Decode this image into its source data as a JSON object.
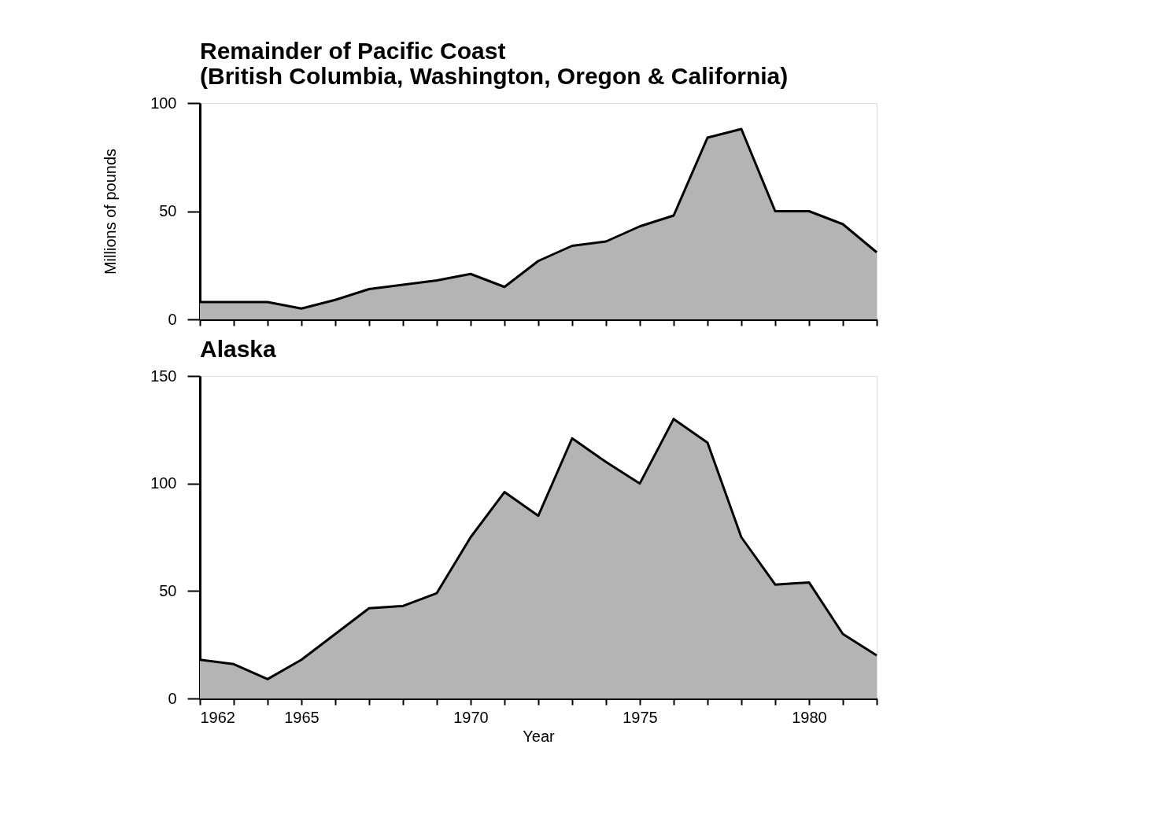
{
  "chart_data": [
    {
      "type": "area",
      "title": "Remainder of Pacific Coast\n(British Columbia, Washington, Oregon & California)",
      "ylabel": "Millions of pounds",
      "x": [
        1962,
        1963,
        1964,
        1965,
        1966,
        1967,
        1968,
        1969,
        1970,
        1971,
        1972,
        1973,
        1974,
        1975,
        1976,
        1977,
        1978,
        1979,
        1980,
        1981,
        1982
      ],
      "series": [
        {
          "color": "#b4b4b4",
          "values": [
            8,
            8,
            8,
            5,
            9,
            14,
            16,
            18,
            21,
            15,
            27,
            34,
            36,
            43,
            48,
            84,
            88,
            50,
            50,
            44,
            31
          ]
        }
      ],
      "xlim": [
        1962,
        1982
      ],
      "ylim": [
        0,
        100
      ],
      "yticks": [
        0,
        50,
        100
      ],
      "xticks": [
        1962,
        {
          "value": 1963,
          "label": null
        },
        {
          "value": 1964,
          "label": null
        },
        1965,
        {
          "value": 1966,
          "label": null
        },
        {
          "value": 1967,
          "label": null
        },
        {
          "value": 1968,
          "label": null
        },
        {
          "value": 1969,
          "label": null
        },
        1970,
        {
          "value": 1971,
          "label": null
        },
        {
          "value": 1972,
          "label": null
        },
        {
          "value": 1973,
          "label": null
        },
        {
          "value": 1974,
          "label": null
        },
        1975,
        {
          "value": 1976,
          "label": null
        },
        {
          "value": 1977,
          "label": null
        },
        {
          "value": 1978,
          "label": null
        },
        {
          "value": 1979,
          "label": null
        },
        1980,
        {
          "value": 1981,
          "label": null
        },
        1982
      ],
      "tick_labels": "y",
      "grid": false
    },
    {
      "type": "area",
      "title": "Alaska",
      "xlabel": "Year",
      "x": [
        1962,
        1963,
        1964,
        1965,
        1966,
        1967,
        1968,
        1969,
        1970,
        1971,
        1972,
        1973,
        1974,
        1975,
        1976,
        1977,
        1978,
        1979,
        1980,
        1981,
        1982
      ],
      "series": [
        {
          "color": "#b4b4b4",
          "values": [
            18,
            16,
            9,
            18,
            30,
            42,
            43,
            49,
            75,
            96,
            85,
            121,
            110,
            100,
            130,
            119,
            75,
            53,
            54,
            30,
            20
          ]
        }
      ],
      "xlim": [
        1962,
        1982
      ],
      "ylim": [
        0,
        150
      ],
      "yticks": [
        0,
        50,
        100,
        150
      ],
      "xticks": [
        1962,
        {
          "value": 1963,
          "label": null
        },
        {
          "value": 1964,
          "label": null
        },
        1965,
        {
          "value": 1966,
          "label": null
        },
        {
          "value": 1967,
          "label": null
        },
        {
          "value": 1968,
          "label": null
        },
        {
          "value": 1969,
          "label": null
        },
        1970,
        {
          "value": 1971,
          "label": null
        },
        {
          "value": 1972,
          "label": null
        },
        {
          "value": 1973,
          "label": null
        },
        {
          "value": 1974,
          "label": null
        },
        1975,
        {
          "value": 1976,
          "label": null
        },
        {
          "value": 1977,
          "label": null
        },
        {
          "value": 1978,
          "label": null
        },
        {
          "value": 1979,
          "label": null
        },
        1980,
        {
          "value": 1981,
          "label": null
        },
        {
          "value": 1982,
          "label": null
        }
      ],
      "grid": false
    }
  ]
}
